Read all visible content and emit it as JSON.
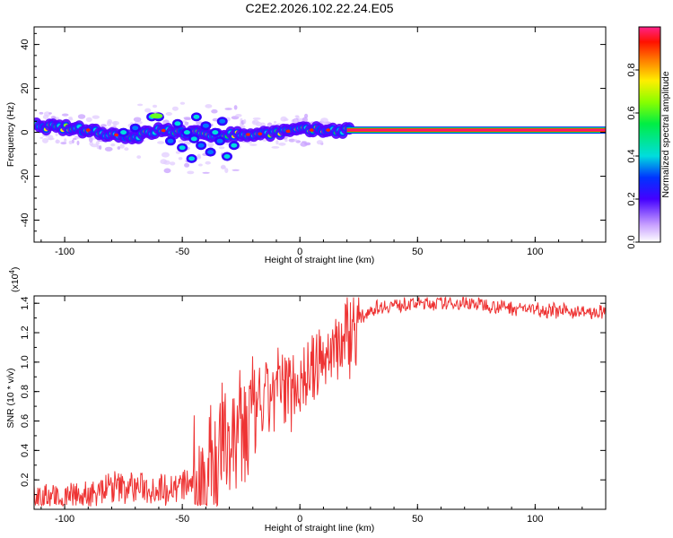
{
  "chart_data": [
    {
      "type": "heatmap",
      "title": "C2E2.2026.102.22.24.E05",
      "xlabel": "Height of straight line (km)",
      "ylabel": "Frequency (Hz)",
      "xlim": [
        -113,
        130
      ],
      "ylim": [
        -50,
        48
      ],
      "xticks": [
        -100,
        -50,
        0,
        50,
        100
      ],
      "yticks": [
        -40,
        -20,
        0,
        20,
        40
      ],
      "ridge": {
        "x": [
          -113,
          -100,
          -90,
          -80,
          -70,
          -60,
          -50,
          -40,
          -30,
          -20,
          -10,
          0,
          10,
          20,
          130
        ],
        "freq": [
          3,
          2,
          1,
          -1,
          -2,
          1,
          0,
          -1,
          -1,
          -1,
          0,
          1,
          1,
          1,
          1
        ]
      },
      "colorbar": {
        "label": "Normalized spectral amplitude",
        "ticks": [
          "0.0",
          "0.2",
          "0.4",
          "0.6",
          "0.8"
        ],
        "range": [
          0,
          1
        ]
      }
    },
    {
      "type": "line",
      "xlabel": "Height of straight line (km)",
      "ylabel": "SNR (10 * v/v)",
      "exponent_label": "(x10",
      "exponent_sup": "4",
      "exponent_close": ")",
      "xlim": [
        -113,
        130
      ],
      "ylim": [
        0,
        1.45
      ],
      "xticks": [
        -100,
        -50,
        0,
        50,
        100
      ],
      "yticks": [
        "0.2",
        "0.4",
        "0.6",
        "0.8",
        "1.0",
        "1.2",
        "1.4"
      ],
      "series": [
        {
          "name": "SNR",
          "color": "#ee3333",
          "trend": {
            "x": [
              -113,
              -100,
              -90,
              -80,
              -70,
              -60,
              -50,
              -45,
              -40,
              -35,
              -30,
              -25,
              -20,
              -15,
              -10,
              -5,
              0,
              5,
              10,
              15,
              20,
              25,
              30,
              40,
              50,
              60,
              70,
              80,
              90,
              100,
              110,
              120,
              130
            ],
            "y": [
              0.07,
              0.06,
              0.1,
              0.15,
              0.15,
              0.14,
              0.16,
              0.18,
              0.3,
              0.4,
              0.5,
              0.55,
              0.6,
              0.72,
              0.82,
              0.85,
              0.88,
              0.92,
              1.02,
              1.12,
              1.2,
              1.28,
              1.36,
              1.39,
              1.4,
              1.4,
              1.4,
              1.39,
              1.37,
              1.36,
              1.35,
              1.34,
              1.33
            ]
          }
        }
      ]
    }
  ]
}
